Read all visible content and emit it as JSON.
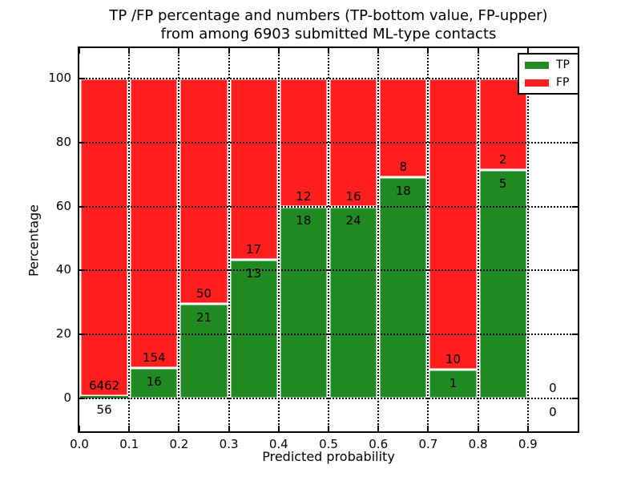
{
  "header": {
    "title_line1": "TP /FP percentage and numbers (TP-bottom value, FP-upper)",
    "title_line2": "from among 6903 submitted ML-type contacts"
  },
  "chart_data": {
    "type": "bar",
    "stacked": true,
    "title": "TP /FP percentage and numbers (TP-bottom value, FP-upper) from among 6903 submitted ML-type contacts",
    "xlabel": "Predicted probability",
    "ylabel": "Percentage",
    "x_ticks": [
      0.0,
      0.1,
      0.2,
      0.3,
      0.4,
      0.5,
      0.6,
      0.7,
      0.8,
      0.9
    ],
    "x_tick_labels": [
      "0.0",
      "0.1",
      "0.2",
      "0.3",
      "0.4",
      "0.5",
      "0.6",
      "0.7",
      "0.8",
      "0.9"
    ],
    "y_ticks": [
      0,
      20,
      40,
      60,
      80,
      100
    ],
    "y_tick_labels": [
      "0",
      "20",
      "40",
      "60",
      "80",
      "100"
    ],
    "xlim": [
      0.0,
      1.0
    ],
    "ylim": [
      -10.5,
      110
    ],
    "grid": true,
    "grid_style": "dotted",
    "legend_position": "upper right",
    "series": [
      {
        "name": "TP",
        "color": "#228a22"
      },
      {
        "name": "FP",
        "color": "#ff1f1f"
      }
    ],
    "bins": [
      {
        "range": [
          0.0,
          0.1
        ],
        "tp": 56,
        "fp": 6462
      },
      {
        "range": [
          0.1,
          0.2
        ],
        "tp": 16,
        "fp": 154
      },
      {
        "range": [
          0.2,
          0.3
        ],
        "tp": 21,
        "fp": 50
      },
      {
        "range": [
          0.3,
          0.4
        ],
        "tp": 13,
        "fp": 17
      },
      {
        "range": [
          0.4,
          0.5
        ],
        "tp": 18,
        "fp": 12
      },
      {
        "range": [
          0.5,
          0.6
        ],
        "tp": 24,
        "fp": 16
      },
      {
        "range": [
          0.6,
          0.7
        ],
        "tp": 18,
        "fp": 8
      },
      {
        "range": [
          0.7,
          0.8
        ],
        "tp": 1,
        "fp": 10
      },
      {
        "range": [
          0.8,
          0.9
        ],
        "tp": 5,
        "fp": 2
      },
      {
        "range": [
          0.9,
          1.0
        ],
        "tp": 0,
        "fp": 0
      }
    ],
    "total_contacts": 6903
  }
}
